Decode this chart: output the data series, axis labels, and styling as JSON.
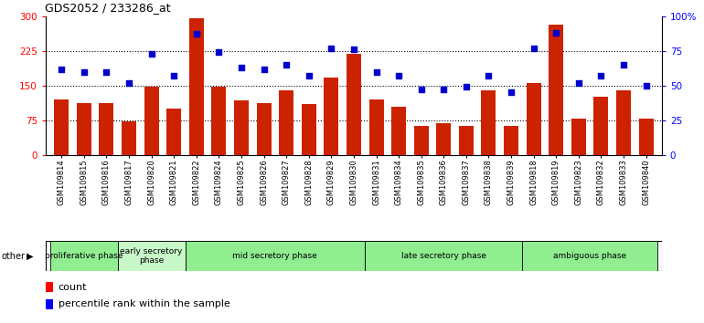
{
  "title": "GDS2052 / 233286_at",
  "samples": [
    "GSM109814",
    "GSM109815",
    "GSM109816",
    "GSM109817",
    "GSM109820",
    "GSM109821",
    "GSM109822",
    "GSM109824",
    "GSM109825",
    "GSM109826",
    "GSM109827",
    "GSM109828",
    "GSM109829",
    "GSM109830",
    "GSM109831",
    "GSM109834",
    "GSM109835",
    "GSM109836",
    "GSM109837",
    "GSM109838",
    "GSM109839",
    "GSM109818",
    "GSM109819",
    "GSM109823",
    "GSM109832",
    "GSM109833",
    "GSM109840"
  ],
  "counts": [
    120,
    113,
    113,
    73,
    148,
    100,
    295,
    148,
    118,
    113,
    140,
    110,
    168,
    218,
    120,
    105,
    62,
    68,
    62,
    140,
    62,
    155,
    282,
    78,
    125,
    140,
    78
  ],
  "percentiles": [
    62,
    60,
    60,
    52,
    73,
    57,
    87,
    74,
    63,
    62,
    65,
    57,
    77,
    76,
    60,
    57,
    47,
    47,
    49,
    57,
    45,
    77,
    88,
    52,
    57,
    65,
    50
  ],
  "phases": [
    {
      "label": "proliferative phase",
      "start": 0,
      "end": 3,
      "color": "#90EE90"
    },
    {
      "label": "early secretory\nphase",
      "start": 3,
      "end": 6,
      "color": "#c8f7c8"
    },
    {
      "label": "mid secretory phase",
      "start": 6,
      "end": 14,
      "color": "#90EE90"
    },
    {
      "label": "late secretory phase",
      "start": 14,
      "end": 21,
      "color": "#90EE90"
    },
    {
      "label": "ambiguous phase",
      "start": 21,
      "end": 27,
      "color": "#90EE90"
    }
  ],
  "bar_color": "#cc2200",
  "dot_color": "#0000cc",
  "ylim_left": [
    0,
    300
  ],
  "ylim_right": [
    0,
    100
  ],
  "yticks_left": [
    0,
    75,
    150,
    225,
    300
  ],
  "ytick_labels_right": [
    "0",
    "25",
    "50",
    "75",
    "100%"
  ],
  "yticks_right": [
    0,
    25,
    50,
    75,
    100
  ],
  "plot_bg": "#ffffff"
}
